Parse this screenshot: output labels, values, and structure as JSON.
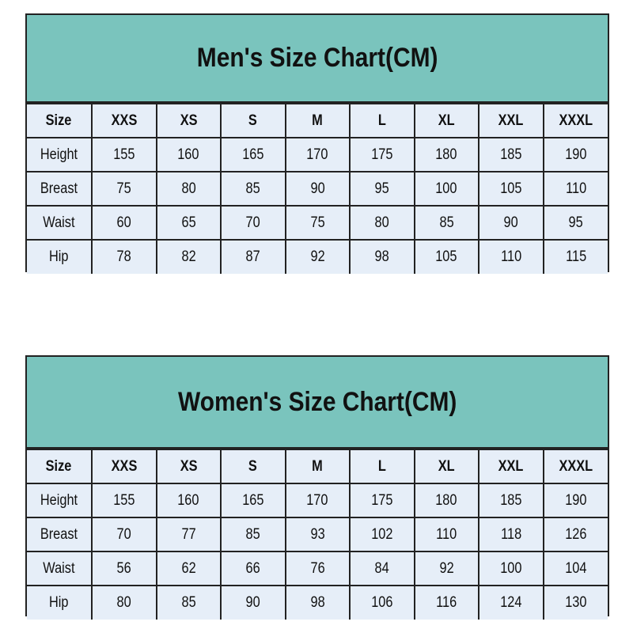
{
  "men": {
    "title": "Men's Size Chart(CM)",
    "header": [
      "Size",
      "XXS",
      "XS",
      "S",
      "M",
      "L",
      "XL",
      "XXL",
      "XXXL"
    ],
    "rows": [
      [
        "Height",
        "155",
        "160",
        "165",
        "170",
        "175",
        "180",
        "185",
        "190"
      ],
      [
        "Breast",
        "75",
        "80",
        "85",
        "90",
        "95",
        "100",
        "105",
        "110"
      ],
      [
        "Waist",
        "60",
        "65",
        "70",
        "75",
        "80",
        "85",
        "90",
        "95"
      ],
      [
        "Hip",
        "78",
        "82",
        "87",
        "92",
        "98",
        "105",
        "110",
        "115"
      ]
    ]
  },
  "women": {
    "title": "Women's Size Chart(CM)",
    "header": [
      "Size",
      "XXS",
      "XS",
      "S",
      "M",
      "L",
      "XL",
      "XXL",
      "XXXL"
    ],
    "rows": [
      [
        "Height",
        "155",
        "160",
        "165",
        "170",
        "175",
        "180",
        "185",
        "190"
      ],
      [
        "Breast",
        "70",
        "77",
        "85",
        "93",
        "102",
        "110",
        "118",
        "126"
      ],
      [
        "Waist",
        "56",
        "62",
        "66",
        "76",
        "84",
        "92",
        "100",
        "104"
      ],
      [
        "Hip",
        "80",
        "85",
        "90",
        "98",
        "106",
        "116",
        "124",
        "130"
      ]
    ]
  },
  "colors": {
    "title_bg": "#7ac4bd",
    "cell_bg": "#e6eef8",
    "border": "#222222"
  }
}
